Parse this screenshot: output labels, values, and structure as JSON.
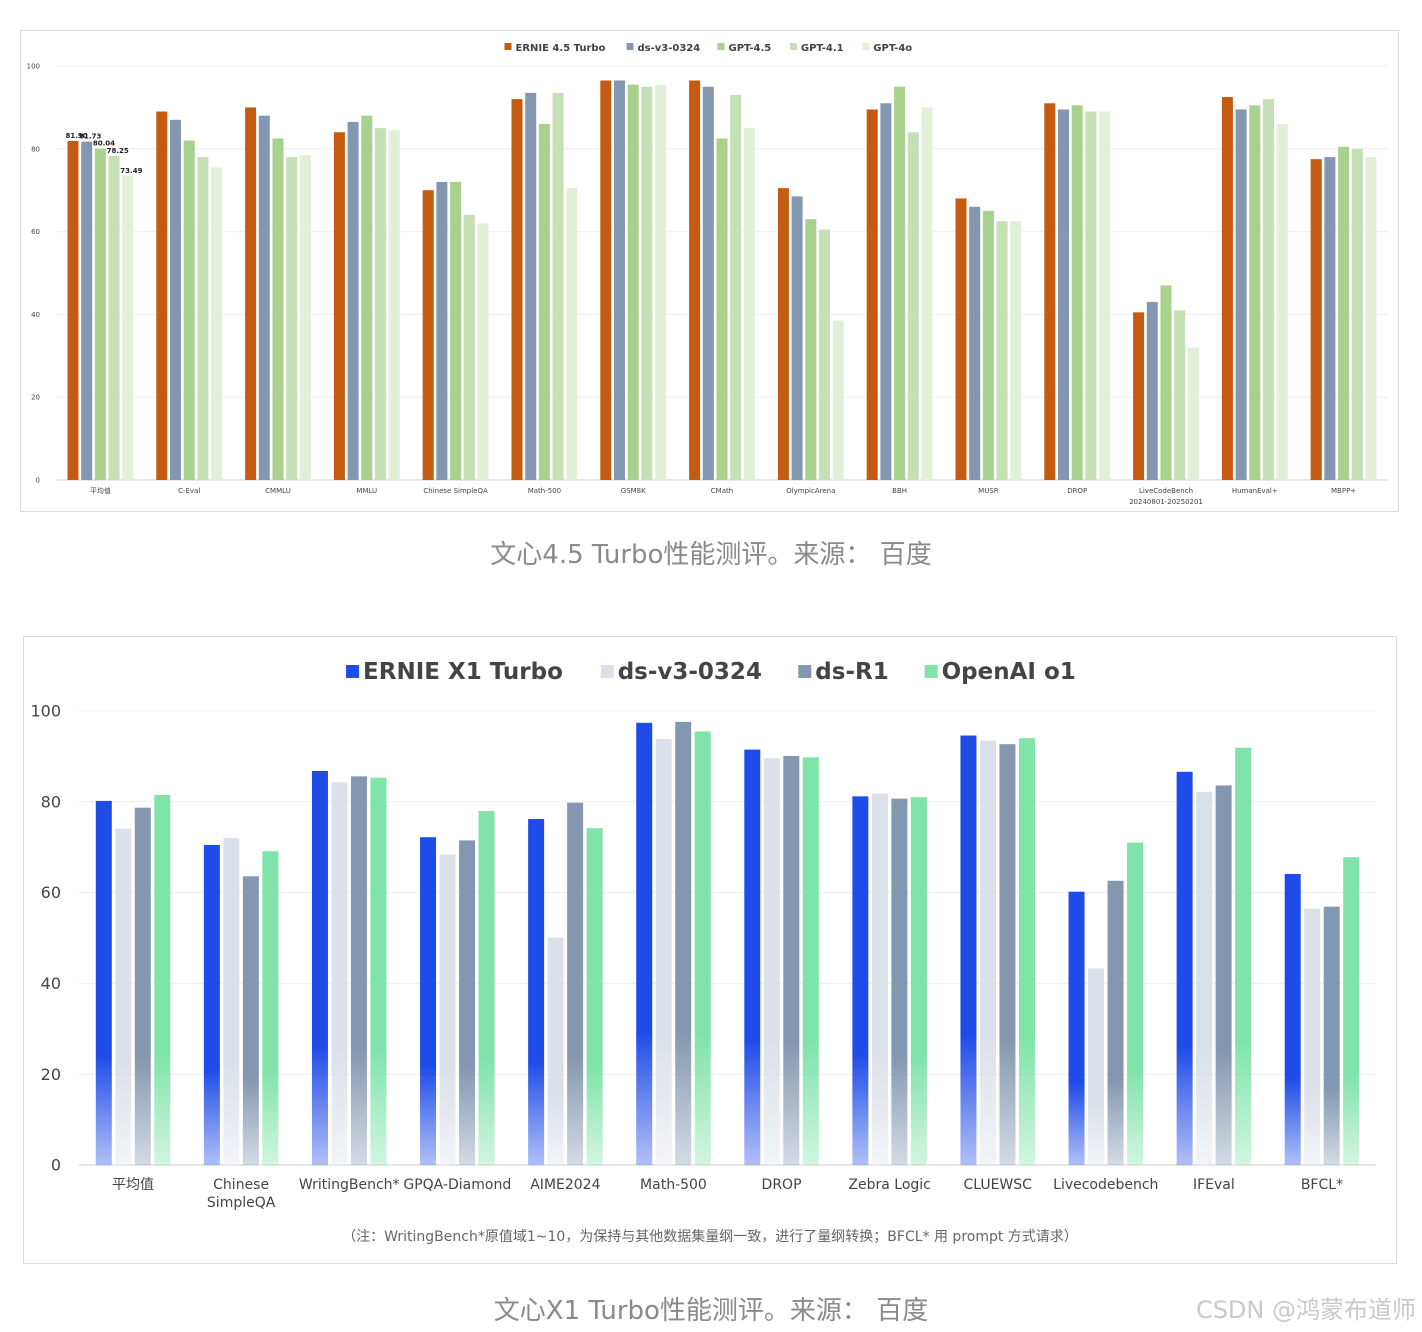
{
  "watermark": "CSDN @鸿蒙布道师",
  "captions": {
    "chart1": "文心4.5 Turbo性能测评。来源： 百度",
    "chart2": "文心X1 Turbo性能测评。来源： 百度"
  },
  "colors": {
    "ernie45": "#c55a11",
    "dsv3_top": "#8497b0",
    "gpt45": "#a9d18e",
    "gpt41": "#c5e0b4",
    "gpt4o": "#e2f0d9",
    "ernieX1": "#1f4ce8",
    "dsv3_bottom": "#dbe1ea",
    "dsR1": "#8497b0",
    "o1": "#7fe3aa"
  },
  "chart_data": [
    {
      "type": "bar",
      "title": "",
      "legend_position": "top",
      "grid": true,
      "ylim": [
        0,
        100
      ],
      "yticks": [
        "0",
        "20",
        "40",
        "60",
        "80",
        "100"
      ],
      "categories": [
        "平均值",
        "C-Eval",
        "CMMLU",
        "MMLU",
        "Chinese SimpleQA",
        "Math-500",
        "GSM8K",
        "CMath",
        "OlympicArena",
        "BBH",
        "MUSR",
        "DROP",
        "LiveCodeBench 20240801-20250201",
        "HumanEval+",
        "MBPP+"
      ],
      "category_lines": [
        [
          "平均值"
        ],
        [
          "C-Eval"
        ],
        [
          "CMMLU"
        ],
        [
          "MMLU"
        ],
        [
          "Chinese SimpleQA"
        ],
        [
          "Math-500"
        ],
        [
          "GSM8K"
        ],
        [
          "CMath"
        ],
        [
          "OlympicArena"
        ],
        [
          "BBH"
        ],
        [
          "MUSR"
        ],
        [
          "DROP"
        ],
        [
          "LiveCodeBench",
          "20240801-20250201"
        ],
        [
          "HumanEval+"
        ],
        [
          "MBPP+"
        ]
      ],
      "series": [
        {
          "name": "ERNIE 4.5 Turbo",
          "color": "#c55a11",
          "values": [
            81.9,
            89,
            90,
            84,
            70,
            92,
            96.5,
            96.5,
            70.5,
            89.5,
            68,
            91,
            40.5,
            92.5,
            77.5
          ]
        },
        {
          "name": "ds-v3-0324",
          "color": "#8497b0",
          "values": [
            81.73,
            87,
            88,
            86.5,
            72,
            93.5,
            96.5,
            95,
            68.5,
            91,
            66,
            89.5,
            43,
            89.5,
            78
          ]
        },
        {
          "name": "GPT-4.5",
          "color": "#a9d18e",
          "values": [
            80.04,
            82,
            82.5,
            88,
            72,
            86,
            95.5,
            82.5,
            63,
            95,
            65,
            90.5,
            47,
            90.5,
            80.5
          ]
        },
        {
          "name": "GPT-4.1",
          "color": "#c5e0b4",
          "values": [
            78.25,
            78,
            78,
            85,
            64,
            93.5,
            95,
            93,
            60.5,
            84,
            62.5,
            89,
            41,
            92,
            80
          ]
        },
        {
          "name": "GPT-4o",
          "color": "#e2f0d9",
          "values": [
            73.49,
            75.5,
            78.5,
            84.5,
            62,
            70.5,
            95.5,
            85,
            38.5,
            90,
            62.5,
            89,
            32,
            86,
            78
          ]
        }
      ],
      "data_labels": [
        "81.90",
        "81.73",
        "80.04",
        "78.25",
        "73.49"
      ]
    },
    {
      "type": "bar",
      "title": "",
      "legend_position": "top",
      "grid": true,
      "ylim": [
        0,
        100
      ],
      "yticks": [
        "0",
        "20",
        "40",
        "60",
        "80",
        "100"
      ],
      "categories": [
        "平均值",
        "Chinese SimpleQA",
        "WritingBench*",
        "GPQA-Diamond",
        "AIME2024",
        "Math-500",
        "DROP",
        "Zebra Logic",
        "CLUEWSC",
        "Livecodebench",
        "IFEval",
        "BFCL*"
      ],
      "category_lines": [
        [
          "平均值"
        ],
        [
          "Chinese",
          "SimpleQA"
        ],
        [
          "WritingBench*"
        ],
        [
          "GPQA-Diamond"
        ],
        [
          "AIME2024"
        ],
        [
          "Math-500"
        ],
        [
          "DROP"
        ],
        [
          "Zebra Logic"
        ],
        [
          "CLUEWSC"
        ],
        [
          "Livecodebench"
        ],
        [
          "IFEval"
        ],
        [
          "BFCL*"
        ]
      ],
      "series": [
        {
          "name": "ERNIE X1 Turbo",
          "color": "#1f4ce8",
          "values": [
            80.2,
            70.5,
            86.8,
            72.2,
            76.2,
            97.4,
            91.5,
            81.2,
            94.6,
            60.2,
            86.6,
            64.1
          ]
        },
        {
          "name": "ds-v3-0324",
          "color": "#dbe1ea",
          "values": [
            74.1,
            72,
            84.3,
            68.4,
            50.1,
            93.8,
            89.6,
            81.8,
            93.5,
            43.3,
            82.2,
            56.5
          ]
        },
        {
          "name": "ds-R1",
          "color": "#8497b0",
          "values": [
            78.7,
            63.6,
            85.6,
            71.5,
            79.8,
            97.6,
            90.1,
            80.7,
            92.7,
            62.6,
            83.6,
            56.9
          ]
        },
        {
          "name": "OpenAI o1",
          "color": "#7fe3aa",
          "values": [
            81.5,
            69.1,
            85.3,
            78,
            74.2,
            95.5,
            89.8,
            81,
            94,
            71,
            91.9,
            67.8
          ]
        }
      ],
      "footnote": "（注：WritingBench*原值域1~10，为保持与其他数据集量纲一致，进行了量纲转换；BFCL* 用 prompt 方式请求）"
    }
  ]
}
